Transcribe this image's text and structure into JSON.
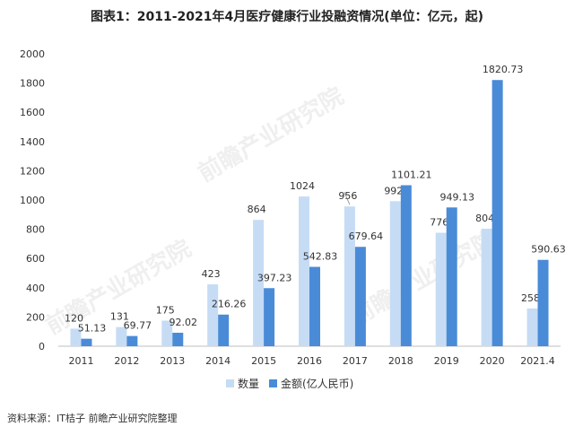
{
  "chart_data": {
    "type": "bar",
    "title": "图表1：2011-2021年4月医疗健康行业投融资情况(单位：亿元，起)",
    "categories": [
      "2011",
      "2012",
      "2013",
      "2014",
      "2015",
      "2016",
      "2017",
      "2018",
      "2019",
      "2020",
      "2021.4"
    ],
    "series": [
      {
        "name": "数量",
        "color": "#c6dcf5",
        "values": [
          120,
          131,
          175,
          423,
          864,
          1024,
          956,
          992,
          776,
          804,
          258
        ]
      },
      {
        "name": "金额(亿人民币)",
        "color": "#4a8bd8",
        "values": [
          51.13,
          69.77,
          92.02,
          216.26,
          397.23,
          542.83,
          679.64,
          1101.21,
          949.13,
          1820.73,
          590.63
        ]
      }
    ],
    "yticks": [
      0,
      200,
      400,
      600,
      800,
      1000,
      1200,
      1400,
      1600,
      1800,
      2000
    ],
    "ylim": [
      0,
      2000
    ],
    "grid": false,
    "legend": "bottom"
  },
  "source": "资料来源：IT桔子 前瞻产业研究院整理",
  "watermark": "前瞻产业研究院"
}
